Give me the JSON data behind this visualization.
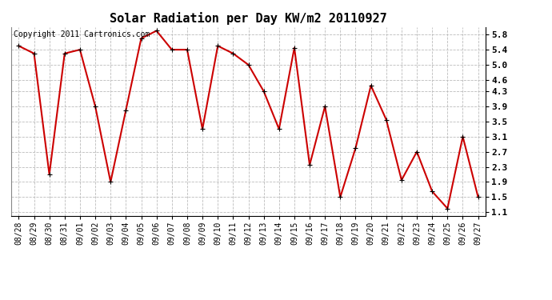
{
  "title": "Solar Radiation per Day KW/m2 20110927",
  "copyright_text": "Copyright 2011 Cartronics.com",
  "dates": [
    "08/28",
    "08/29",
    "08/30",
    "08/31",
    "09/01",
    "09/02",
    "09/03",
    "09/04",
    "09/05",
    "09/06",
    "09/07",
    "09/08",
    "09/09",
    "09/10",
    "09/11",
    "09/12",
    "09/13",
    "09/14",
    "09/15",
    "09/16",
    "09/17",
    "09/18",
    "09/19",
    "09/20",
    "09/21",
    "09/22",
    "09/23",
    "09/24",
    "09/25",
    "09/26",
    "09/27"
  ],
  "values": [
    5.5,
    5.3,
    2.1,
    5.3,
    5.4,
    3.9,
    1.9,
    3.8,
    5.7,
    5.9,
    5.4,
    5.4,
    3.3,
    5.5,
    5.3,
    5.0,
    4.3,
    3.3,
    5.45,
    2.35,
    3.9,
    1.5,
    2.8,
    4.45,
    3.55,
    1.95,
    2.7,
    1.65,
    1.2,
    3.1,
    1.5
  ],
  "ylim": [
    1.0,
    6.0
  ],
  "yticks": [
    1.1,
    1.5,
    1.9,
    2.3,
    2.7,
    3.1,
    3.5,
    3.9,
    4.3,
    4.6,
    5.0,
    5.4,
    5.8
  ],
  "line_color": "#cc0000",
  "marker": "+",
  "marker_size": 5,
  "line_width": 1.5,
  "background_color": "#ffffff",
  "plot_bg_color": "#ffffff",
  "grid_color": "#bbbbbb",
  "title_fontsize": 11,
  "tick_fontsize": 7,
  "copyright_fontsize": 7
}
